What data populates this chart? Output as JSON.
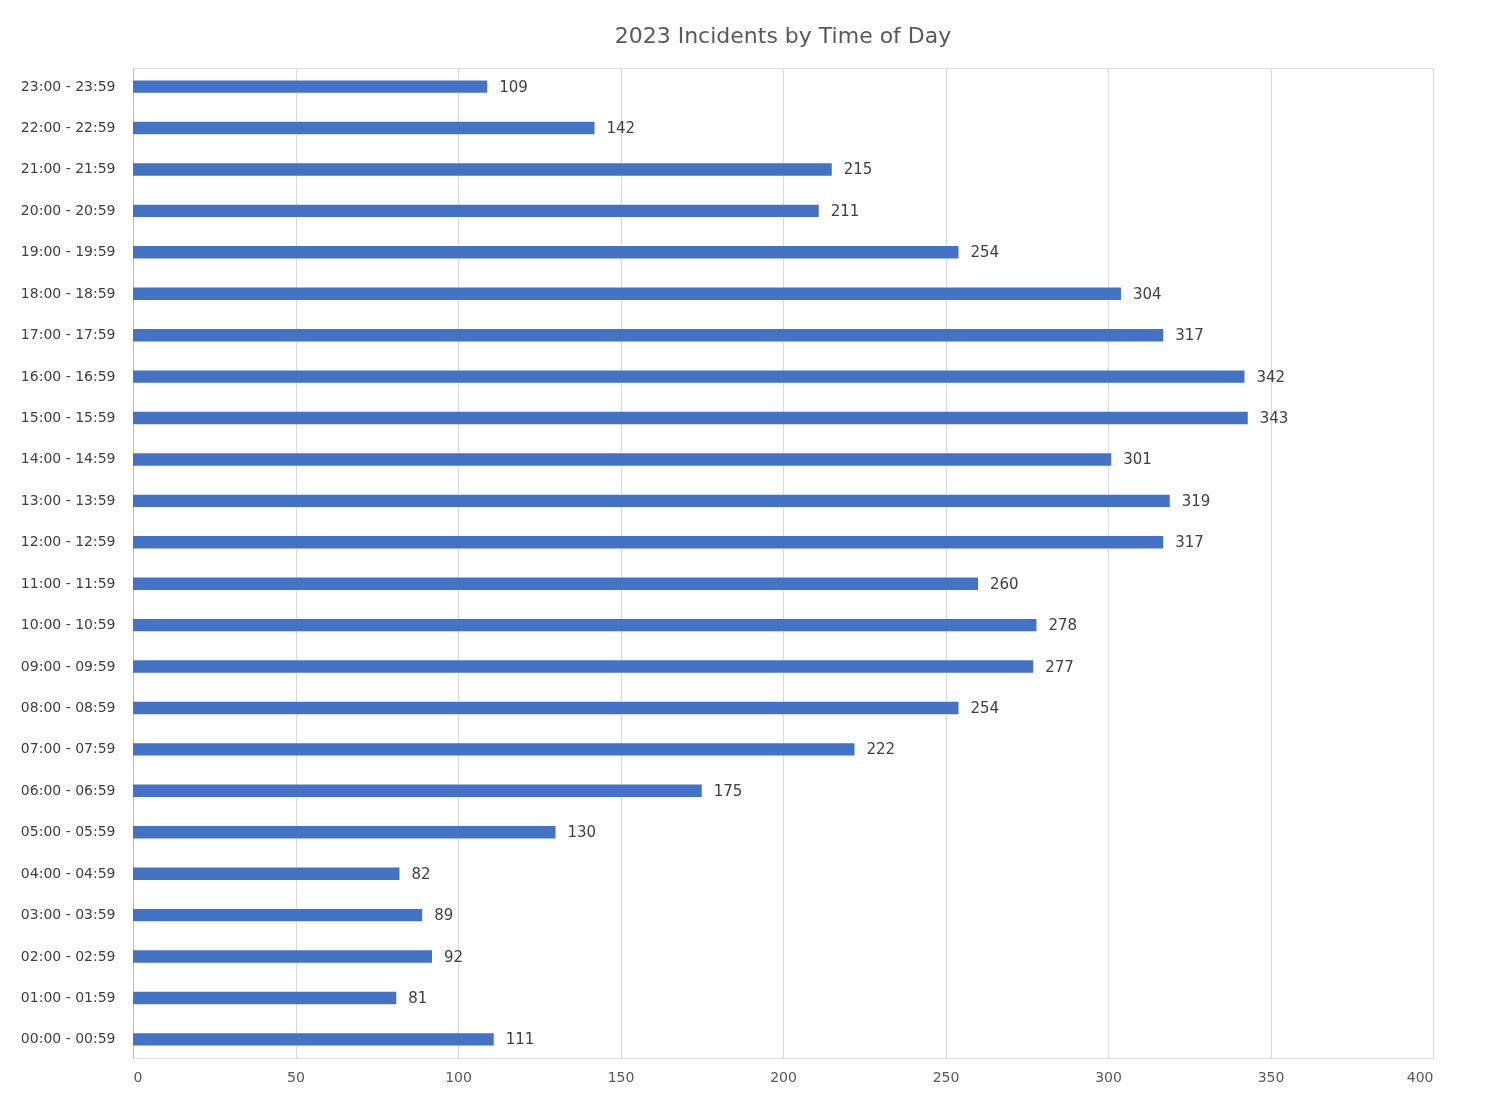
{
  "chart_data": {
    "type": "bar",
    "orientation": "horizontal",
    "title": "2023 Incidents by Time of Day",
    "categories": [
      "23:00 - 23:59",
      "22:00 - 22:59",
      "21:00 - 21:59",
      "20:00 - 20:59",
      "19:00 - 19:59",
      "18:00 - 18:59",
      "17:00 - 17:59",
      "16:00 - 16:59",
      "15:00 - 15:59",
      "14:00 - 14:59",
      "13:00 - 13:59",
      "12:00 - 12:59",
      "11:00 - 11:59",
      "10:00 - 10:59",
      "09:00 - 09:59",
      "08:00 - 08:59",
      "07:00 - 07:59",
      "06:00 - 06:59",
      "05:00 - 05:59",
      "04:00 - 04:59",
      "03:00 - 03:59",
      "02:00 - 02:59",
      "01:00 - 01:59",
      "00:00 - 00:59"
    ],
    "values": [
      109,
      142,
      215,
      211,
      254,
      304,
      317,
      342,
      343,
      301,
      319,
      317,
      260,
      278,
      277,
      254,
      222,
      175,
      130,
      82,
      89,
      92,
      81,
      111
    ],
    "color": "#4472c4",
    "xlim": [
      0,
      400
    ],
    "xticks": [
      0,
      50,
      100,
      150,
      200,
      250,
      300,
      350,
      400
    ],
    "grid": "x",
    "data_labels": true
  }
}
